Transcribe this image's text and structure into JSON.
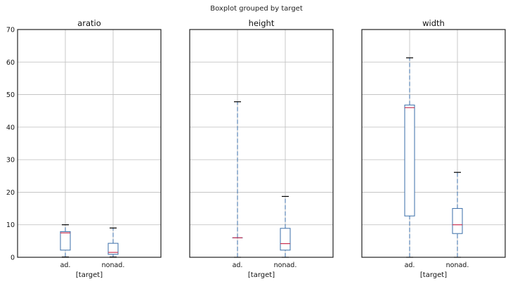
{
  "suptitle": "Boxplot grouped by target",
  "chart_data": {
    "type": "boxplot",
    "categories": [
      "ad.",
      "nonad."
    ],
    "xlabel": "[target]",
    "ylim": [
      0,
      70
    ],
    "yticks": [
      0,
      10,
      20,
      30,
      40,
      50,
      60,
      70
    ],
    "grid": true,
    "sharey": true,
    "panels": [
      {
        "title": "aratio",
        "boxes": [
          {
            "category": "ad.",
            "whislo": 0.1,
            "q1": 2.2,
            "median": 7.5,
            "q3": 7.9,
            "whishi": 10.0
          },
          {
            "category": "nonad.",
            "whislo": 0.1,
            "q1": 0.9,
            "median": 1.5,
            "q3": 4.3,
            "whishi": 9.0
          }
        ]
      },
      {
        "title": "height",
        "boxes": [
          {
            "category": "ad.",
            "whislo": 0.0,
            "q1": 6.0,
            "median": 6.0,
            "q3": 6.0,
            "whishi": 47.8
          },
          {
            "category": "nonad.",
            "whislo": 0.0,
            "q1": 2.2,
            "median": 4.2,
            "q3": 8.9,
            "whishi": 18.7
          }
        ]
      },
      {
        "title": "width",
        "boxes": [
          {
            "category": "ad.",
            "whislo": 0.0,
            "q1": 12.7,
            "median": 46.0,
            "q3": 46.8,
            "whishi": 61.3
          },
          {
            "category": "nonad.",
            "whislo": 0.0,
            "q1": 7.3,
            "median": 10.0,
            "q3": 15.0,
            "whishi": 26.1
          }
        ]
      }
    ]
  }
}
